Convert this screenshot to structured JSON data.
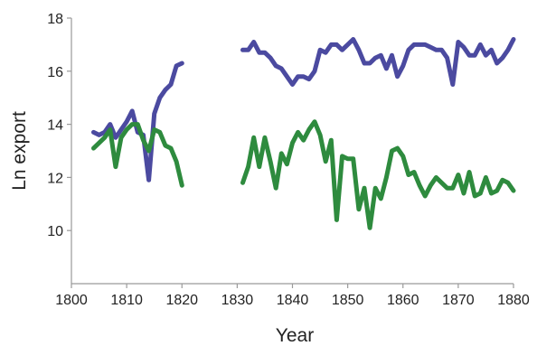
{
  "chart_data": {
    "type": "line",
    "title": "",
    "xlabel": "Year",
    "ylabel": "Ln export",
    "xlim": [
      1800,
      1880
    ],
    "ylim": [
      8,
      18
    ],
    "x_ticks": [
      1800,
      1810,
      1820,
      1830,
      1840,
      1850,
      1860,
      1870,
      1880
    ],
    "y_ticks": [
      10,
      12,
      14,
      16,
      18
    ],
    "grid": false,
    "legend": "none",
    "series": [
      {
        "color": "#4b4aa0",
        "segments": [
          [
            [
              1804,
              13.7
            ],
            [
              1805,
              13.6
            ],
            [
              1806,
              13.7
            ],
            [
              1807,
              14.0
            ],
            [
              1808,
              13.5
            ],
            [
              1809,
              13.8
            ],
            [
              1810,
              14.1
            ],
            [
              1811,
              14.5
            ],
            [
              1812,
              13.7
            ],
            [
              1813,
              13.6
            ],
            [
              1814,
              11.9
            ],
            [
              1815,
              14.4
            ],
            [
              1816,
              15.0
            ],
            [
              1817,
              15.3
            ],
            [
              1818,
              15.5
            ],
            [
              1819,
              16.2
            ],
            [
              1820,
              16.3
            ]
          ],
          [
            [
              1831,
              16.8
            ],
            [
              1832,
              16.8
            ],
            [
              1833,
              17.1
            ],
            [
              1834,
              16.7
            ],
            [
              1835,
              16.7
            ],
            [
              1836,
              16.5
            ],
            [
              1837,
              16.2
            ],
            [
              1838,
              16.1
            ],
            [
              1839,
              15.8
            ],
            [
              1840,
              15.5
            ],
            [
              1841,
              15.8
            ],
            [
              1842,
              15.8
            ],
            [
              1843,
              15.7
            ],
            [
              1844,
              16.0
            ],
            [
              1845,
              16.8
            ],
            [
              1846,
              16.7
            ],
            [
              1847,
              17.0
            ],
            [
              1848,
              17.0
            ],
            [
              1849,
              16.8
            ],
            [
              1850,
              17.0
            ],
            [
              1851,
              17.2
            ],
            [
              1852,
              16.8
            ],
            [
              1853,
              16.3
            ],
            [
              1854,
              16.3
            ],
            [
              1855,
              16.5
            ],
            [
              1856,
              16.6
            ],
            [
              1857,
              16.1
            ],
            [
              1858,
              16.6
            ],
            [
              1859,
              15.8
            ],
            [
              1860,
              16.2
            ],
            [
              1861,
              16.8
            ],
            [
              1862,
              17.0
            ],
            [
              1863,
              17.0
            ],
            [
              1864,
              17.0
            ],
            [
              1865,
              16.9
            ],
            [
              1866,
              16.8
            ],
            [
              1867,
              16.8
            ],
            [
              1868,
              16.5
            ],
            [
              1869,
              15.5
            ],
            [
              1870,
              17.1
            ],
            [
              1871,
              16.9
            ],
            [
              1872,
              16.6
            ],
            [
              1873,
              16.6
            ],
            [
              1874,
              17.0
            ],
            [
              1875,
              16.6
            ],
            [
              1876,
              16.8
            ],
            [
              1877,
              16.3
            ],
            [
              1878,
              16.5
            ],
            [
              1879,
              16.8
            ],
            [
              1880,
              17.2
            ]
          ]
        ]
      },
      {
        "color": "#2e8b3e",
        "segments": [
          [
            [
              1804,
              13.1
            ],
            [
              1805,
              13.3
            ],
            [
              1806,
              13.5
            ],
            [
              1807,
              13.8
            ],
            [
              1808,
              12.4
            ],
            [
              1809,
              13.5
            ],
            [
              1810,
              13.8
            ],
            [
              1811,
              14.0
            ],
            [
              1812,
              14.0
            ],
            [
              1813,
              13.4
            ],
            [
              1814,
              13.0
            ],
            [
              1815,
              13.8
            ],
            [
              1816,
              13.7
            ],
            [
              1817,
              13.2
            ],
            [
              1818,
              13.1
            ],
            [
              1819,
              12.6
            ],
            [
              1820,
              11.7
            ]
          ],
          [
            [
              1831,
              11.8
            ],
            [
              1832,
              12.4
            ],
            [
              1833,
              13.5
            ],
            [
              1834,
              12.4
            ],
            [
              1835,
              13.5
            ],
            [
              1836,
              12.6
            ],
            [
              1837,
              11.6
            ],
            [
              1838,
              12.9
            ],
            [
              1839,
              12.5
            ],
            [
              1840,
              13.3
            ],
            [
              1841,
              13.7
            ],
            [
              1842,
              13.4
            ],
            [
              1843,
              13.8
            ],
            [
              1844,
              14.1
            ],
            [
              1845,
              13.6
            ],
            [
              1846,
              12.6
            ],
            [
              1847,
              13.4
            ],
            [
              1848,
              10.4
            ],
            [
              1849,
              12.8
            ],
            [
              1850,
              12.7
            ],
            [
              1851,
              12.7
            ],
            [
              1852,
              10.8
            ],
            [
              1853,
              11.6
            ],
            [
              1854,
              10.1
            ],
            [
              1855,
              11.6
            ],
            [
              1856,
              11.2
            ],
            [
              1857,
              12.0
            ],
            [
              1858,
              13.0
            ],
            [
              1859,
              13.1
            ],
            [
              1860,
              12.8
            ],
            [
              1861,
              12.1
            ],
            [
              1862,
              12.2
            ],
            [
              1863,
              11.7
            ],
            [
              1864,
              11.3
            ],
            [
              1865,
              11.7
            ],
            [
              1866,
              12.0
            ],
            [
              1867,
              11.8
            ],
            [
              1868,
              11.6
            ],
            [
              1869,
              11.6
            ],
            [
              1870,
              12.1
            ],
            [
              1871,
              11.4
            ],
            [
              1872,
              12.2
            ],
            [
              1873,
              11.3
            ],
            [
              1874,
              11.4
            ],
            [
              1875,
              12.0
            ],
            [
              1876,
              11.4
            ],
            [
              1877,
              11.5
            ],
            [
              1878,
              11.9
            ],
            [
              1879,
              11.8
            ],
            [
              1880,
              11.5
            ]
          ]
        ]
      }
    ]
  }
}
